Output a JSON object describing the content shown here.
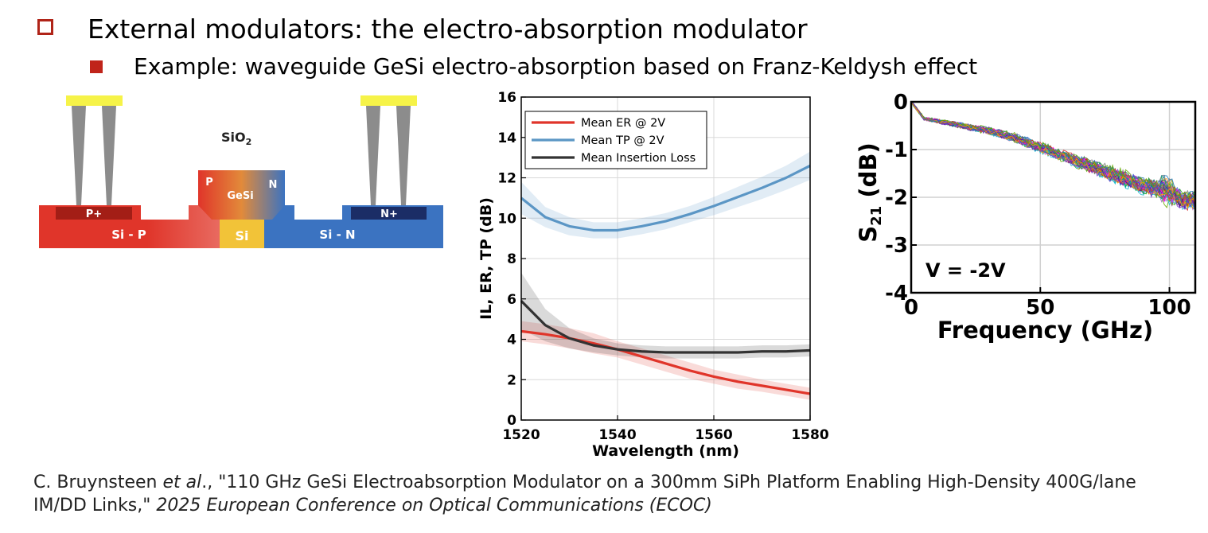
{
  "heading": {
    "level1": "External modulators: the electro-absorption modulator",
    "level2": "Example: waveguide GeSi electro-absorption based on Franz-Keldysh effect"
  },
  "diagram": {
    "label_sio2": "SiO",
    "label_sio2_sub": "2",
    "label_p_plus": "P+",
    "label_n_plus": "N+",
    "label_p": "P",
    "label_n": "N",
    "label_gesi": "GeSi",
    "label_si": "Si",
    "label_si_p": "Si - P",
    "label_si_n": "Si - N",
    "colors": {
      "p_region": "#e0352a",
      "n_region": "#3b73c1",
      "si_core": "#f2c338",
      "contact": "#f6f348",
      "via": "#8c8c8c"
    }
  },
  "citation": {
    "authors": "C. Bruynsteen",
    "etal": "et al",
    "after_etal": "., \"110 GHz GeSi Electroabsorption Modulator on a 300mm SiPh Platform Enabling High-Density 400G/lane IM/DD Links,\" ",
    "venue": "2025 European Conference on Optical Communications (ECOC)"
  },
  "chart_data": [
    {
      "type": "line",
      "xlabel": "Wavelength (nm)",
      "ylabel": "IL, ER, TP (dB)",
      "xlim": [
        1520,
        1580
      ],
      "ylim": [
        0,
        16
      ],
      "xticks": [
        1520,
        1540,
        1560,
        1580
      ],
      "yticks": [
        0,
        2,
        4,
        6,
        8,
        10,
        12,
        14,
        16
      ],
      "grid": true,
      "legend": "top-left",
      "series": [
        {
          "name": "Mean ER @ 2V",
          "color": "#e0352a",
          "x": [
            1520,
            1525,
            1530,
            1535,
            1540,
            1545,
            1550,
            1555,
            1560,
            1565,
            1570,
            1575,
            1580
          ],
          "y": [
            4.4,
            4.25,
            4.05,
            3.8,
            3.5,
            3.15,
            2.8,
            2.45,
            2.15,
            1.9,
            1.7,
            1.5,
            1.3
          ],
          "band": [
            0.5,
            0.5,
            0.5,
            0.5,
            0.4,
            0.4,
            0.4,
            0.4,
            0.35,
            0.35,
            0.3,
            0.3,
            0.3
          ]
        },
        {
          "name": "Mean TP @ 2V",
          "color": "#5b96c5",
          "x": [
            1520,
            1525,
            1530,
            1535,
            1540,
            1545,
            1550,
            1555,
            1560,
            1565,
            1570,
            1575,
            1580
          ],
          "y": [
            11.0,
            10.05,
            9.6,
            9.4,
            9.4,
            9.6,
            9.85,
            10.2,
            10.6,
            11.05,
            11.5,
            12.0,
            12.6
          ],
          "band": [
            0.8,
            0.5,
            0.45,
            0.4,
            0.4,
            0.4,
            0.4,
            0.4,
            0.45,
            0.5,
            0.55,
            0.6,
            0.7
          ]
        },
        {
          "name": "Mean Insertion Loss",
          "color": "#333333",
          "x": [
            1520,
            1525,
            1530,
            1535,
            1540,
            1545,
            1550,
            1555,
            1560,
            1565,
            1570,
            1575,
            1580
          ],
          "y": [
            5.9,
            4.7,
            4.05,
            3.7,
            3.5,
            3.4,
            3.35,
            3.35,
            3.35,
            3.35,
            3.4,
            3.4,
            3.45
          ],
          "band": [
            1.4,
            0.8,
            0.5,
            0.35,
            0.3,
            0.3,
            0.3,
            0.3,
            0.3,
            0.3,
            0.3,
            0.3,
            0.3
          ]
        }
      ]
    },
    {
      "type": "line",
      "xlabel": "Frequency (GHz)",
      "ylabel_main": "S",
      "ylabel_sub": "21",
      "ylabel_unit": " (dB)",
      "xlim": [
        0,
        110
      ],
      "ylim": [
        -4,
        0
      ],
      "xticks": [
        0,
        50,
        100
      ],
      "yticks": [
        0,
        -1,
        -2,
        -3,
        -4
      ],
      "grid": true,
      "annotation": "V = -2V",
      "series_note": "many measured devices, multicolor traces",
      "trend": {
        "x": [
          0,
          5,
          10,
          20,
          30,
          40,
          50,
          60,
          70,
          80,
          90,
          95,
          100,
          105,
          110
        ],
        "y": [
          0.0,
          -0.35,
          -0.4,
          -0.5,
          -0.6,
          -0.75,
          -0.95,
          -1.15,
          -1.35,
          -1.55,
          -1.75,
          -1.8,
          -1.85,
          -2.05,
          -2.05
        ]
      },
      "trace_colors": [
        "#ff7f0e",
        "#1f77b4",
        "#2ca02c",
        "#d62728",
        "#9467bd",
        "#8c564b",
        "#e377c2",
        "#7f7f7f",
        "#bcbd22",
        "#17becf",
        "#ff00ff",
        "#00aa55",
        "#aa5500",
        "#5500aa",
        "#009999",
        "#cc3366",
        "#3366cc",
        "#66aa00",
        "#ff9900",
        "#6633cc"
      ]
    }
  ]
}
